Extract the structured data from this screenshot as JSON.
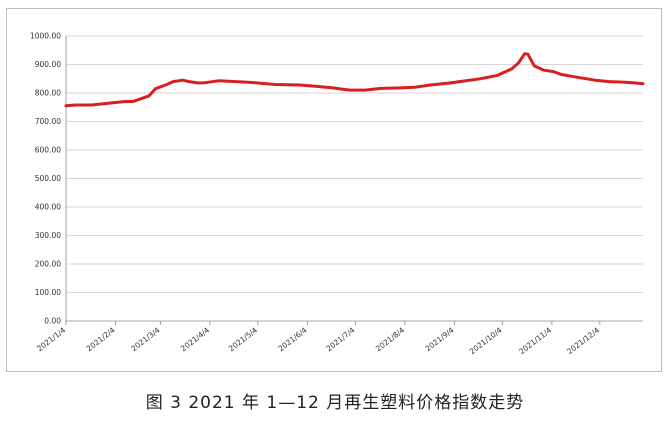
{
  "caption": "图 3  2021 年 1—12 月再生塑料价格指数走势",
  "chart_data": {
    "type": "line",
    "title": "",
    "xlabel": "",
    "ylabel": "",
    "ylim": [
      0,
      1000
    ],
    "yticks": [
      0,
      100,
      200,
      300,
      400,
      500,
      600,
      700,
      800,
      900,
      1000
    ],
    "ytick_labels": [
      "0.00",
      "100.00",
      "200.00",
      "300.00",
      "400.00",
      "500.00",
      "600.00",
      "700.00",
      "800.00",
      "900.00",
      "1000.00"
    ],
    "xtick_labels": [
      "2021/1/4",
      "2021/2/4",
      "2021/3/4",
      "2021/4/4",
      "2021/5/4",
      "2021/6/4",
      "2021/7/4",
      "2021/8/4",
      "2021/9/4",
      "2021/10/4",
      "2021/11/4",
      "2021/12/4"
    ],
    "x_range": [
      "2021/1/4",
      "2021/12/31"
    ],
    "grid": true,
    "line_color": "#d81e1e",
    "series": [
      {
        "x": [
          "2021/1/4",
          "2021/1/10",
          "2021/1/20",
          "2021/2/1",
          "2021/2/10",
          "2021/2/15",
          "2021/2/25",
          "2021/3/1",
          "2021/3/8",
          "2021/3/12",
          "2021/3/18",
          "2021/3/22",
          "2021/3/28",
          "2021/4/1",
          "2021/4/10",
          "2021/4/20",
          "2021/4/28",
          "2021/5/4",
          "2021/5/15",
          "2021/5/30",
          "2021/6/10",
          "2021/6/20",
          "2021/6/28",
          "2021/7/1",
          "2021/7/10",
          "2021/7/20",
          "2021/8/1",
          "2021/8/10",
          "2021/8/20",
          "2021/9/1",
          "2021/9/10",
          "2021/9/20",
          "2021/10/1",
          "2021/10/10",
          "2021/10/14",
          "2021/10/18",
          "2021/10/20",
          "2021/10/24",
          "2021/10/30",
          "2021/11/5",
          "2021/11/10",
          "2021/11/20",
          "2021/12/1",
          "2021/12/10",
          "2021/12/20",
          "2021/12/31"
        ],
        "values": [
          755,
          758,
          758,
          765,
          770,
          770,
          790,
          815,
          830,
          840,
          845,
          840,
          835,
          836,
          843,
          840,
          838,
          835,
          830,
          828,
          823,
          818,
          812,
          810,
          810,
          816,
          818,
          820,
          828,
          835,
          842,
          850,
          862,
          885,
          905,
          938,
          936,
          895,
          880,
          875,
          865,
          855,
          845,
          840,
          838,
          833
        ]
      }
    ]
  }
}
